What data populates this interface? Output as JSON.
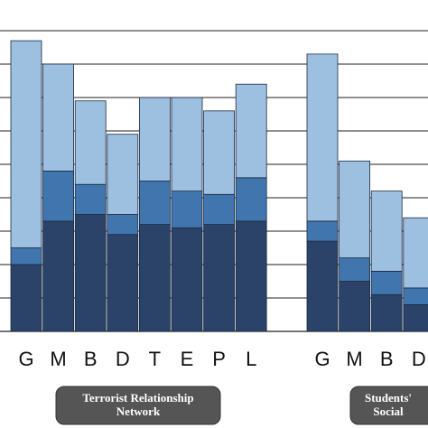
{
  "colors": {
    "bottom": "#2b4368",
    "middle": "#4175ae",
    "top": "#9dbfe0",
    "grid": "#222222",
    "stroke": "#1c2a40",
    "group_box": "#555555"
  },
  "chart_data": {
    "type": "bar",
    "stacked": true,
    "ylim": [
      0,
      10
    ],
    "grid": true,
    "groups": [
      {
        "label_lines": [
          "Terrorist Relationship",
          "Network"
        ],
        "categories": [
          "G",
          "M",
          "B",
          "D",
          "T",
          "E",
          "P",
          "L"
        ],
        "series": [
          {
            "values": [
              2.0,
              3.3,
              3.5,
              2.9,
              3.2,
              3.1,
              3.2,
              3.3
            ]
          },
          {
            "values": [
              0.5,
              1.5,
              0.9,
              0.6,
              1.3,
              1.1,
              0.9,
              1.3
            ]
          },
          {
            "values": [
              6.2,
              3.2,
              2.5,
              2.4,
              2.5,
              2.8,
              2.5,
              2.8
            ]
          }
        ]
      },
      {
        "label_lines": [
          "Students'",
          "Social"
        ],
        "categories": [
          "G",
          "M",
          "B",
          "D"
        ],
        "series": [
          {
            "values": [
              2.7,
              1.5,
              1.1,
              0.8
            ]
          },
          {
            "values": [
              0.6,
              0.7,
              0.7,
              0.5
            ]
          },
          {
            "values": [
              5.0,
              2.9,
              2.4,
              2.1
            ]
          }
        ]
      }
    ]
  }
}
